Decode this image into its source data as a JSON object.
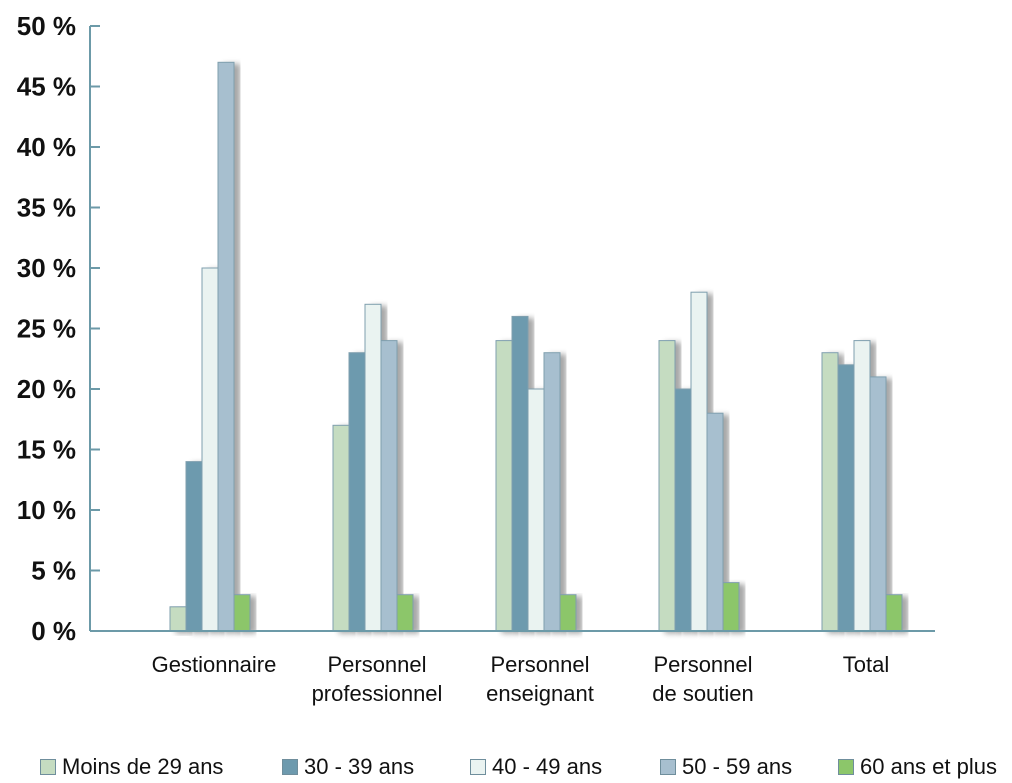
{
  "chart_data": {
    "type": "bar",
    "categories": [
      [
        "Gestionnaire"
      ],
      [
        "Personnel",
        "professionnel"
      ],
      [
        "Personnel",
        "enseignant"
      ],
      [
        "Personnel",
        "de soutien"
      ],
      [
        "Total"
      ]
    ],
    "series": [
      {
        "name": "Moins de 29 ans",
        "color": "#c5dcc1",
        "values": [
          2,
          17,
          24,
          24,
          23
        ]
      },
      {
        "name": "30 - 39 ans",
        "color": "#6d9aae",
        "values": [
          14,
          23,
          26,
          20,
          22
        ]
      },
      {
        "name": "40 - 49 ans",
        "color": "#eaf3f1",
        "values": [
          30,
          27,
          20,
          28,
          24
        ]
      },
      {
        "name": "50 - 59 ans",
        "color": "#a7bfcf",
        "values": [
          47,
          24,
          23,
          18,
          21
        ]
      },
      {
        "name": "60 ans et plus",
        "color": "#8cc66a",
        "values": [
          3,
          3,
          3,
          4,
          3
        ]
      }
    ],
    "yticks": [
      "0 %",
      "5 %",
      "10 %",
      "15 %",
      "20 %",
      "25 %",
      "30 %",
      "35 %",
      "40 %",
      "45 %",
      "50 %"
    ],
    "ylim": [
      0,
      50
    ],
    "grid": false,
    "legend_position": "bottom",
    "axis_color": "#6c9aa8"
  }
}
